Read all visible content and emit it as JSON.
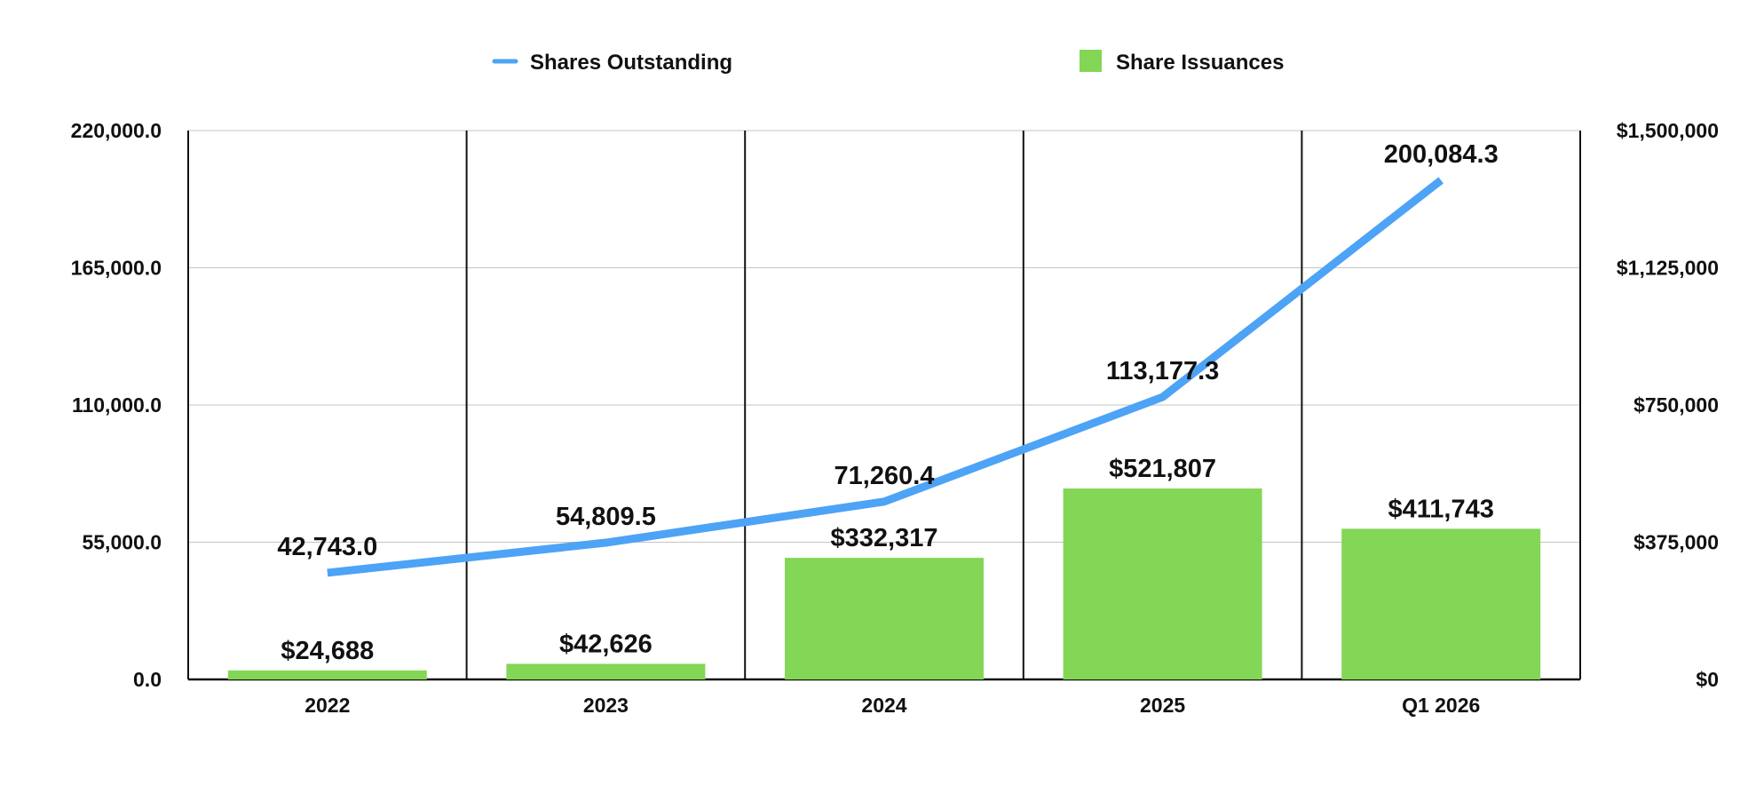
{
  "chart_data": {
    "type": "bar",
    "categories": [
      "2022",
      "2023",
      "2024",
      "2025",
      "Q1 2026"
    ],
    "series": [
      {
        "name": "Shares Outstanding",
        "type": "line",
        "axis": "left",
        "color": "#4DA3F5",
        "values": [
          42743.0,
          54809.5,
          71260.4,
          113177.3,
          200084.3
        ],
        "labels": [
          "42,743.0",
          "54,809.5",
          "71,260.4",
          "113,177.3",
          "200,084.3"
        ]
      },
      {
        "name": "Share Issuances",
        "type": "bar",
        "axis": "right",
        "color": "#84D656",
        "values": [
          24688,
          42626,
          332317,
          521807,
          411743
        ],
        "labels": [
          "$24,688",
          "$42,626",
          "$332,317",
          "$521,807",
          "$411,743"
        ]
      }
    ],
    "y_left": {
      "range": [
        0,
        220000
      ],
      "ticks": [
        0,
        55000,
        110000,
        165000,
        220000
      ],
      "tick_labels": [
        "0.0",
        "55,000.0",
        "110,000.0",
        "165,000.0",
        "220,000.0"
      ]
    },
    "y_right": {
      "range": [
        0,
        1500000
      ],
      "ticks": [
        0,
        375000,
        750000,
        1125000,
        1500000
      ],
      "tick_labels": [
        "$0",
        "$375,000",
        "$750,000",
        "$1,125,000",
        "$1,500,000"
      ]
    },
    "grid": "horizontal",
    "category_dividers": true,
    "legend_position": "top"
  }
}
